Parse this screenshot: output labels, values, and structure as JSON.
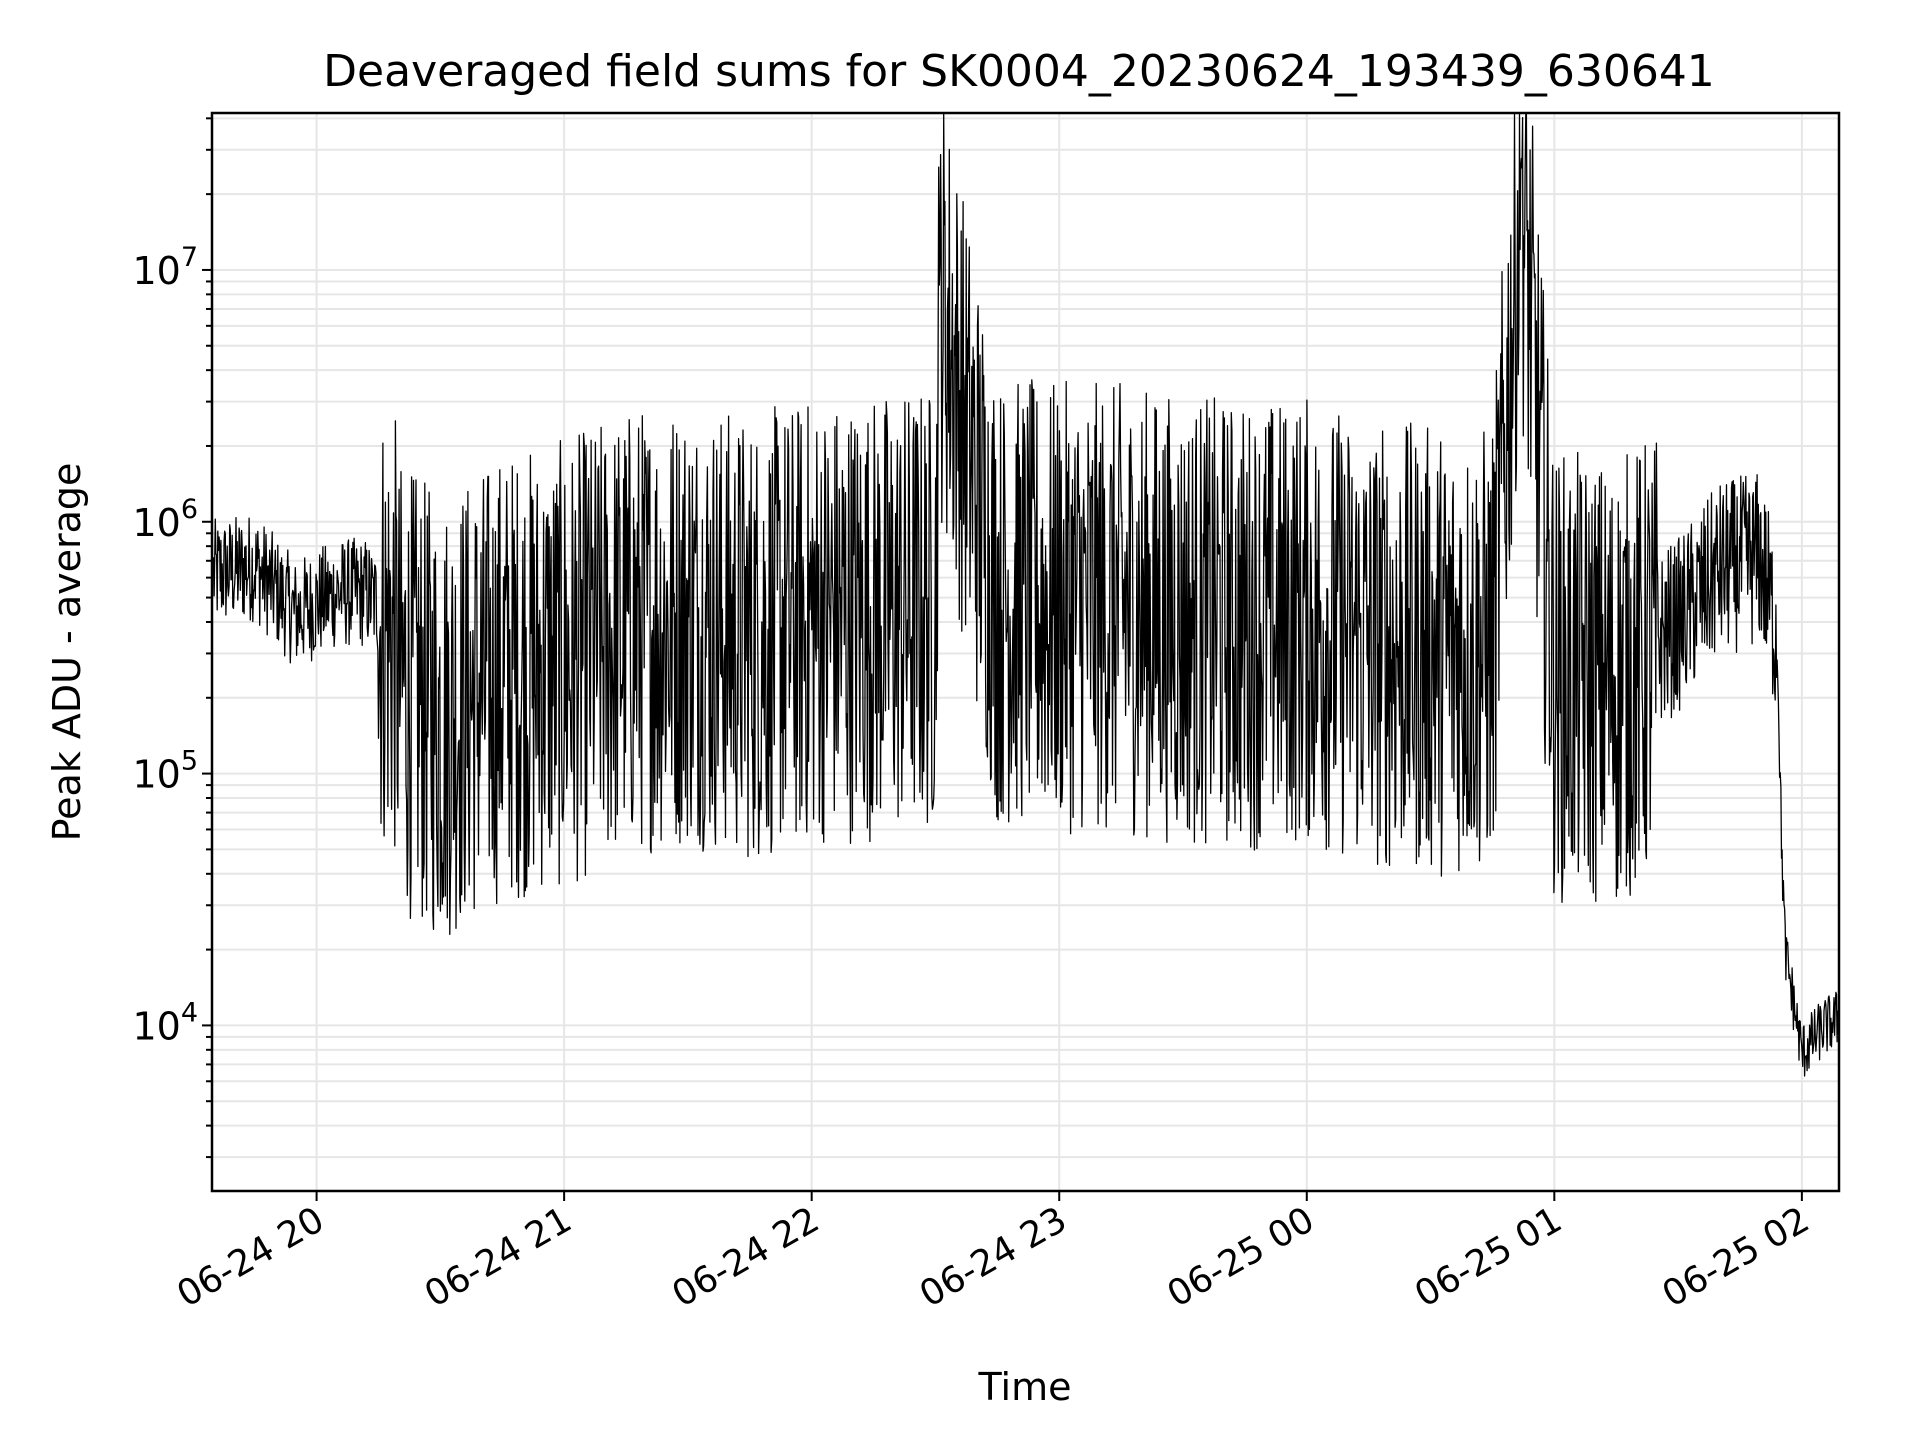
{
  "chart_data": {
    "type": "line",
    "title": "Deaveraged field sums for SK0004_20230624_193439_630641",
    "xlabel": "Time",
    "ylabel": "Peak ADU - average",
    "yscale": "log",
    "ylim": [
      2200,
      42000000
    ],
    "xlim": [
      "06-24 19:34:39",
      "06-25 02:09:00"
    ],
    "grid": true,
    "x_ticks": [
      "06-24 20",
      "06-24 21",
      "06-24 22",
      "06-24 23",
      "06-25 00",
      "06-25 01",
      "06-25 02"
    ],
    "y_ticks": [
      {
        "base": "10",
        "exp": "4",
        "value": 10000
      },
      {
        "base": "10",
        "exp": "5",
        "value": 100000
      },
      {
        "base": "10",
        "exp": "6",
        "value": 1000000
      },
      {
        "base": "10",
        "exp": "7",
        "value": 10000000
      }
    ],
    "series": [
      {
        "color": "#000000",
        "x": [
          "06-24 19:35",
          "06-24 19:45",
          "06-24 19:55",
          "06-24 20:05",
          "06-24 20:12",
          "06-24 20:19",
          "06-24 20:20",
          "06-24 20:30",
          "06-24 20:45",
          "06-24 21:00",
          "06-24 21:15",
          "06-24 21:30",
          "06-24 21:45",
          "06-24 22:00",
          "06-24 22:15",
          "06-24 22:30",
          "06-24 22:31",
          "06-24 22:45",
          "06-24 23:00",
          "06-24 23:15",
          "06-24 23:30",
          "06-24 23:45",
          "06-25 00:00",
          "06-25 00:15",
          "06-25 00:30",
          "06-25 00:45",
          "06-25 00:52",
          "06-25 01:00",
          "06-25 01:15",
          "06-25 01:30",
          "06-25 01:40",
          "06-25 01:50",
          "06-25 01:54",
          "06-25 01:55",
          "06-25 01:56",
          "06-25 02:00",
          "06-25 02:05",
          "06-25 02:09"
        ],
        "y": [
          650000,
          700000,
          450000,
          550000,
          550000,
          420000,
          280000,
          200000,
          300000,
          330000,
          450000,
          500000,
          420000,
          500000,
          520000,
          560000,
          10500000,
          600000,
          560000,
          560000,
          500000,
          480000,
          500000,
          400000,
          380000,
          380000,
          28000000,
          300000,
          280000,
          420000,
          700000,
          780000,
          380000,
          60000,
          20000,
          8000,
          10000,
          11000
        ]
      }
    ]
  }
}
